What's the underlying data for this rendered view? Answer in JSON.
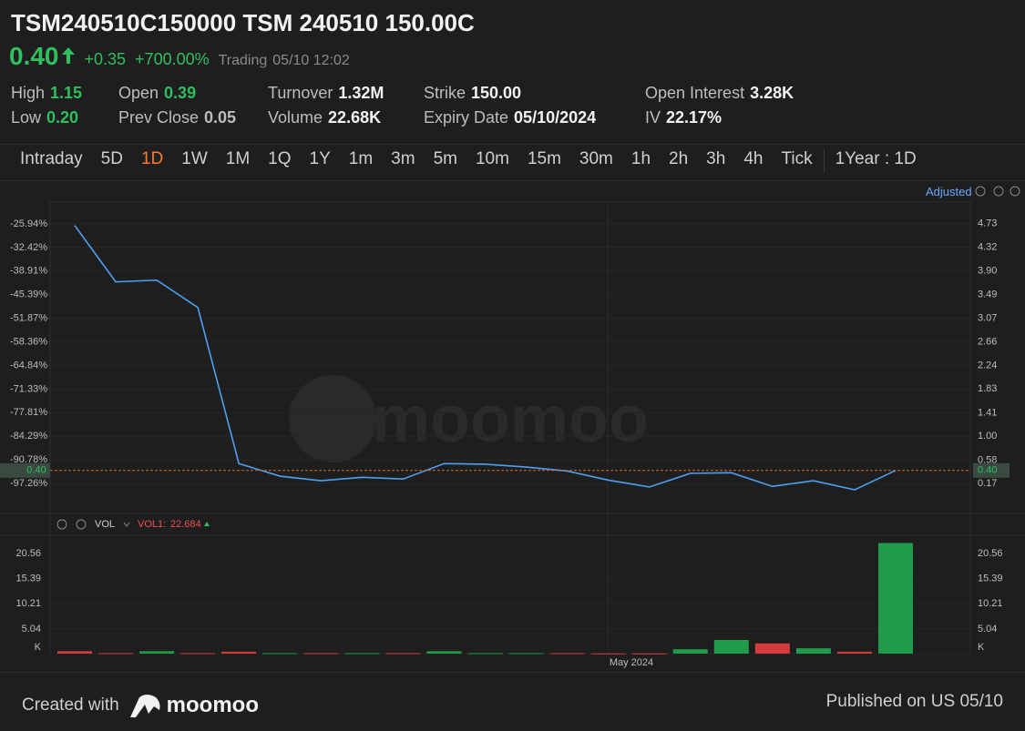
{
  "header": {
    "title": "TSM240510C150000 TSM 240510 150.00C"
  },
  "quote": {
    "price": "0.40",
    "change": "+0.35",
    "change_pct": "+700.00%",
    "status": "Trading",
    "time": "05/10 12:02"
  },
  "stats": [
    [
      {
        "label": "High",
        "value": "1.15"
      },
      {
        "label": "Low",
        "value": "0.20"
      }
    ],
    [
      {
        "label": "Open",
        "value": "0.39"
      },
      {
        "label": "Prev Close",
        "value": "0.05"
      }
    ],
    [
      {
        "label": "Turnover",
        "value": "1.32M"
      },
      {
        "label": "Volume",
        "value": "22.68K"
      }
    ],
    [
      {
        "label": "Strike",
        "value": "150.00"
      },
      {
        "label": "Expiry Date",
        "value": "05/10/2024"
      }
    ],
    [
      {
        "label": "Open Interest",
        "value": "3.28K"
      },
      {
        "label": "IV",
        "value": "22.17%"
      }
    ]
  ],
  "tabs": {
    "items": [
      "Intraday",
      "5D",
      "1D",
      "1W",
      "1M",
      "1Q",
      "1Y",
      "1m",
      "3m",
      "5m",
      "10m",
      "15m",
      "30m",
      "1h",
      "2h",
      "3h",
      "4h",
      "Tick"
    ],
    "range": "1Year : 1D"
  },
  "chart_data": [
    {
      "type": "line",
      "label": "Adjusted",
      "color": "#4f9ff0",
      "grid": true,
      "values": [
        4.7,
        3.71,
        3.74,
        3.26,
        0.52,
        0.3,
        0.22,
        0.28,
        0.25,
        0.52,
        0.51,
        0.46,
        0.39,
        0.23,
        0.11,
        0.35,
        0.36,
        0.12,
        0.22,
        0.06,
        0.4
      ],
      "ylim": [
        -0.29,
        5.11
      ],
      "yticks": [
        4.73,
        4.32,
        {
          "value": 3.9,
          "label": "3.90"
        },
        3.49,
        3.07,
        2.66,
        2.24,
        1.83,
        1.41,
        {
          "value": 1.0,
          "label": "1.00"
        },
        0.58,
        0.17
      ],
      "y2lim": [
        -104.52,
        -19.93
      ],
      "y2ticks": [
        {
          "value": -25.94,
          "label": "-25.94%"
        },
        {
          "value": -32.42,
          "label": "-32.42%"
        },
        {
          "value": -38.91,
          "label": "-38.91%"
        },
        {
          "value": -45.39,
          "label": "-45.39%"
        },
        {
          "value": -51.87,
          "label": "-51.87%"
        },
        {
          "value": -58.36,
          "label": "-58.36%"
        },
        {
          "value": -64.84,
          "label": "-64.84%"
        },
        {
          "value": -71.33,
          "label": "-71.33%"
        },
        {
          "value": -77.81,
          "label": "-77.81%"
        },
        {
          "value": -84.29,
          "label": "-84.29%"
        },
        {
          "value": -90.78,
          "label": "-90.78%"
        },
        {
          "value": -97.26,
          "label": "-97.26%"
        }
      ],
      "last": {
        "value": 0.4,
        "label": "0.40"
      }
    },
    {
      "type": "bar",
      "title": "VOL",
      "series_label": "VOL1:",
      "x_label": "May 2024",
      "values": [
        0.5,
        0.1,
        0.5,
        0.1,
        0.4,
        0.1,
        0.1,
        0.1,
        0.1,
        0.5,
        0.1,
        0.1,
        0.1,
        0.05,
        0.05,
        0.9,
        2.8,
        2.1,
        1.1,
        0.4,
        22.684
      ],
      "colors": [
        "#d33c3c",
        "#d33c3c",
        "#1f9b4b",
        "#d33c3c",
        "#d33c3c",
        "#1f9b4b",
        "#d33c3c",
        "#1f9b4b",
        "#d33c3c",
        "#1f9b4b",
        "#1f9b4b",
        "#1f9b4b",
        "#d33c3c",
        "#d33c3c",
        "#d33c3c",
        "#1f9b4b",
        "#1f9b4b",
        "#d33c3c",
        "#1f9b4b",
        "#d33c3c",
        "#1f9b4b"
      ],
      "ylim": [
        0,
        23.9
      ],
      "yticks": [
        20.56,
        15.39,
        10.21,
        5.04,
        {
          "value": 0,
          "label": "K"
        }
      ]
    }
  ],
  "footer": {
    "created": "Created with",
    "brand": "moomoo",
    "published": "Published on US 05/10"
  }
}
